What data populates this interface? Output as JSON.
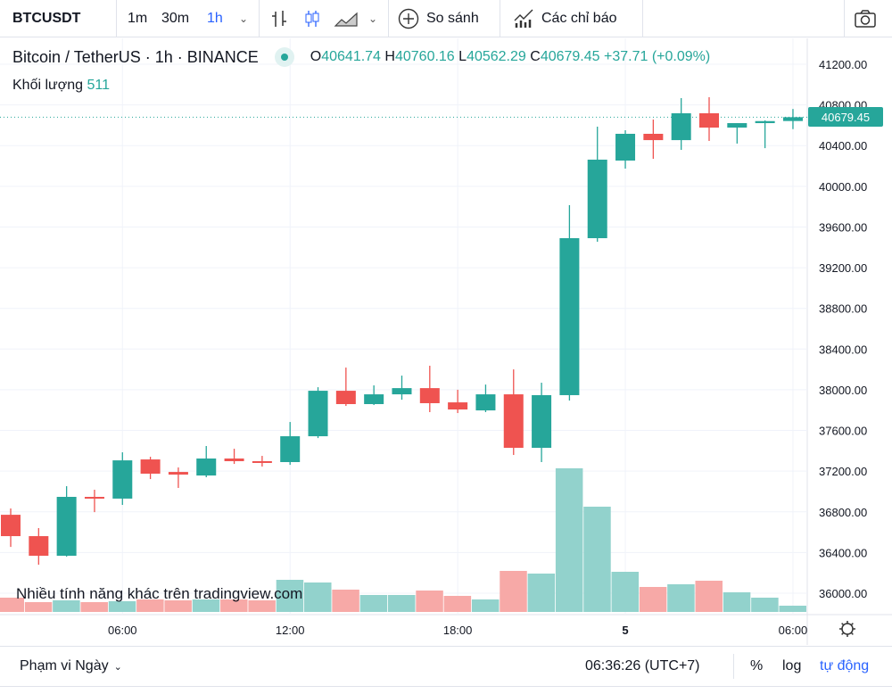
{
  "toolbar": {
    "symbol": "BTCUSDT",
    "intervals": [
      "1m",
      "30m",
      "1h"
    ],
    "active_interval": "1h",
    "compare_label": "So sánh",
    "indicators_label": "Các chỉ báo",
    "icons": [
      "chevron-down-icon",
      "bar-chart-icon",
      "candles-icon",
      "area-chart-icon",
      "plus-circle-icon",
      "indicators-icon",
      "camera-icon"
    ]
  },
  "legend": {
    "title": "Bitcoin / TetherUS · 1h · BINANCE",
    "o_label": "O",
    "o": "40641.74",
    "h_label": "H",
    "h": "40760.16",
    "l_label": "L",
    "l": "40562.29",
    "c_label": "C",
    "c": "40679.45",
    "change": "+37.71 (+0.09%)",
    "volume_label": "Khối lượng",
    "volume": "511"
  },
  "watermark": "Nhiều tính năng khác trên tradingview.com",
  "current_price": "40679.45",
  "colors": {
    "up": "#26a69a",
    "down": "#ef5350",
    "up_volume": "#92d2cc",
    "down_volume": "#f7a9a7",
    "accent": "#2962ff"
  },
  "bottom": {
    "range_label": "Phạm vi Ngày",
    "time": "06:36:26 (UTC+7)",
    "percent": "%",
    "log": "log",
    "auto": "tự động"
  },
  "chart_data": {
    "type": "candlestick",
    "grid": true,
    "y_ticks": [
      "41200.00",
      "40800.00",
      "40400.00",
      "40000.00",
      "39600.00",
      "39200.00",
      "38800.00",
      "38400.00",
      "38000.00",
      "37600.00",
      "37200.00",
      "36800.00",
      "36400.00",
      "36000.00"
    ],
    "ylim": [
      35800,
      41460
    ],
    "x_ticks": [
      {
        "label": "06:00",
        "index": 4
      },
      {
        "label": "12:00",
        "index": 10
      },
      {
        "label": "18:00",
        "index": 16
      },
      {
        "label": "5",
        "index": 22,
        "bold": true
      },
      {
        "label": "06:00",
        "index": 28
      }
    ],
    "candles": [
      [
        36771,
        36833,
        36455,
        36561,
        1168
      ],
      [
        36561,
        36640,
        36280,
        36368,
        803
      ],
      [
        36368,
        37052,
        36360,
        36947,
        949
      ],
      [
        36947,
        37017,
        36797,
        36930,
        803
      ],
      [
        36930,
        37385,
        36868,
        37306,
        876
      ],
      [
        37315,
        37341,
        37122,
        37175,
        1022
      ],
      [
        37192,
        37236,
        37035,
        37166,
        949
      ],
      [
        37157,
        37447,
        37140,
        37324,
        1022
      ],
      [
        37324,
        37420,
        37271,
        37298,
        1022
      ],
      [
        37298,
        37350,
        37245,
        37289,
        949
      ],
      [
        37289,
        37683,
        37262,
        37543,
        2628
      ],
      [
        37543,
        38025,
        37525,
        37990,
        2409
      ],
      [
        37990,
        38218,
        37841,
        37859,
        1825
      ],
      [
        37859,
        38043,
        37850,
        37955,
        1387
      ],
      [
        37955,
        38139,
        37902,
        38016,
        1387
      ],
      [
        38016,
        38236,
        37780,
        37868,
        1752
      ],
      [
        37876,
        38000,
        37771,
        37806,
        1314
      ],
      [
        37797,
        38051,
        37780,
        37955,
        1022
      ],
      [
        37955,
        38200,
        37359,
        37429,
        3358
      ],
      [
        37429,
        38069,
        37289,
        37947,
        3139
      ],
      [
        37947,
        39815,
        37894,
        39490,
        11753
      ],
      [
        39490,
        40586,
        39455,
        40262,
        8614
      ],
      [
        40253,
        40551,
        40174,
        40516,
        3285
      ],
      [
        40516,
        40656,
        40270,
        40454,
        2044
      ],
      [
        40454,
        40867,
        40358,
        40718,
        2263
      ],
      [
        40718,
        40876,
        40446,
        40577,
        2555
      ],
      [
        40577,
        40621,
        40420,
        40621,
        1606
      ],
      [
        40621,
        40648,
        40375,
        40641,
        1168
      ],
      [
        40641.74,
        40760.16,
        40562.29,
        40679.45,
        511
      ]
    ],
    "candle_fields": [
      "open",
      "high",
      "low",
      "close",
      "volume"
    ]
  }
}
